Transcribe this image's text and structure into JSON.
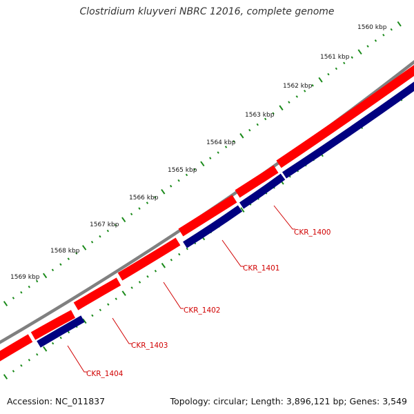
{
  "title": "Clostridium kluyveri NBRC 12016, complete genome",
  "accession_text": "Accession: NC_011837",
  "summary_text": "Topology: circular; Length: 3,896,121 bp; Genes: 3,549",
  "colors": {
    "backbone": "#808080",
    "forward_strand": "#ff0000",
    "reverse_strand": "#000080",
    "ticks": "#1a8a1a",
    "labels": "#d10000"
  },
  "scale_ticks": [
    {
      "label": "1560 kbp"
    },
    {
      "label": "1561 kbp"
    },
    {
      "label": "1562 kbp"
    },
    {
      "label": "1563 kbp"
    },
    {
      "label": "1564 kbp"
    },
    {
      "label": "1565 kbp"
    },
    {
      "label": "1566 kbp"
    },
    {
      "label": "1567 kbp"
    },
    {
      "label": "1568 kbp"
    },
    {
      "label": "1569 kbp"
    }
  ],
  "genes": [
    {
      "label": "CKR_1400"
    },
    {
      "label": "CKR_1401"
    },
    {
      "label": "CKR_1402"
    },
    {
      "label": "CKR_1403"
    },
    {
      "label": "CKR_1404"
    }
  ]
}
